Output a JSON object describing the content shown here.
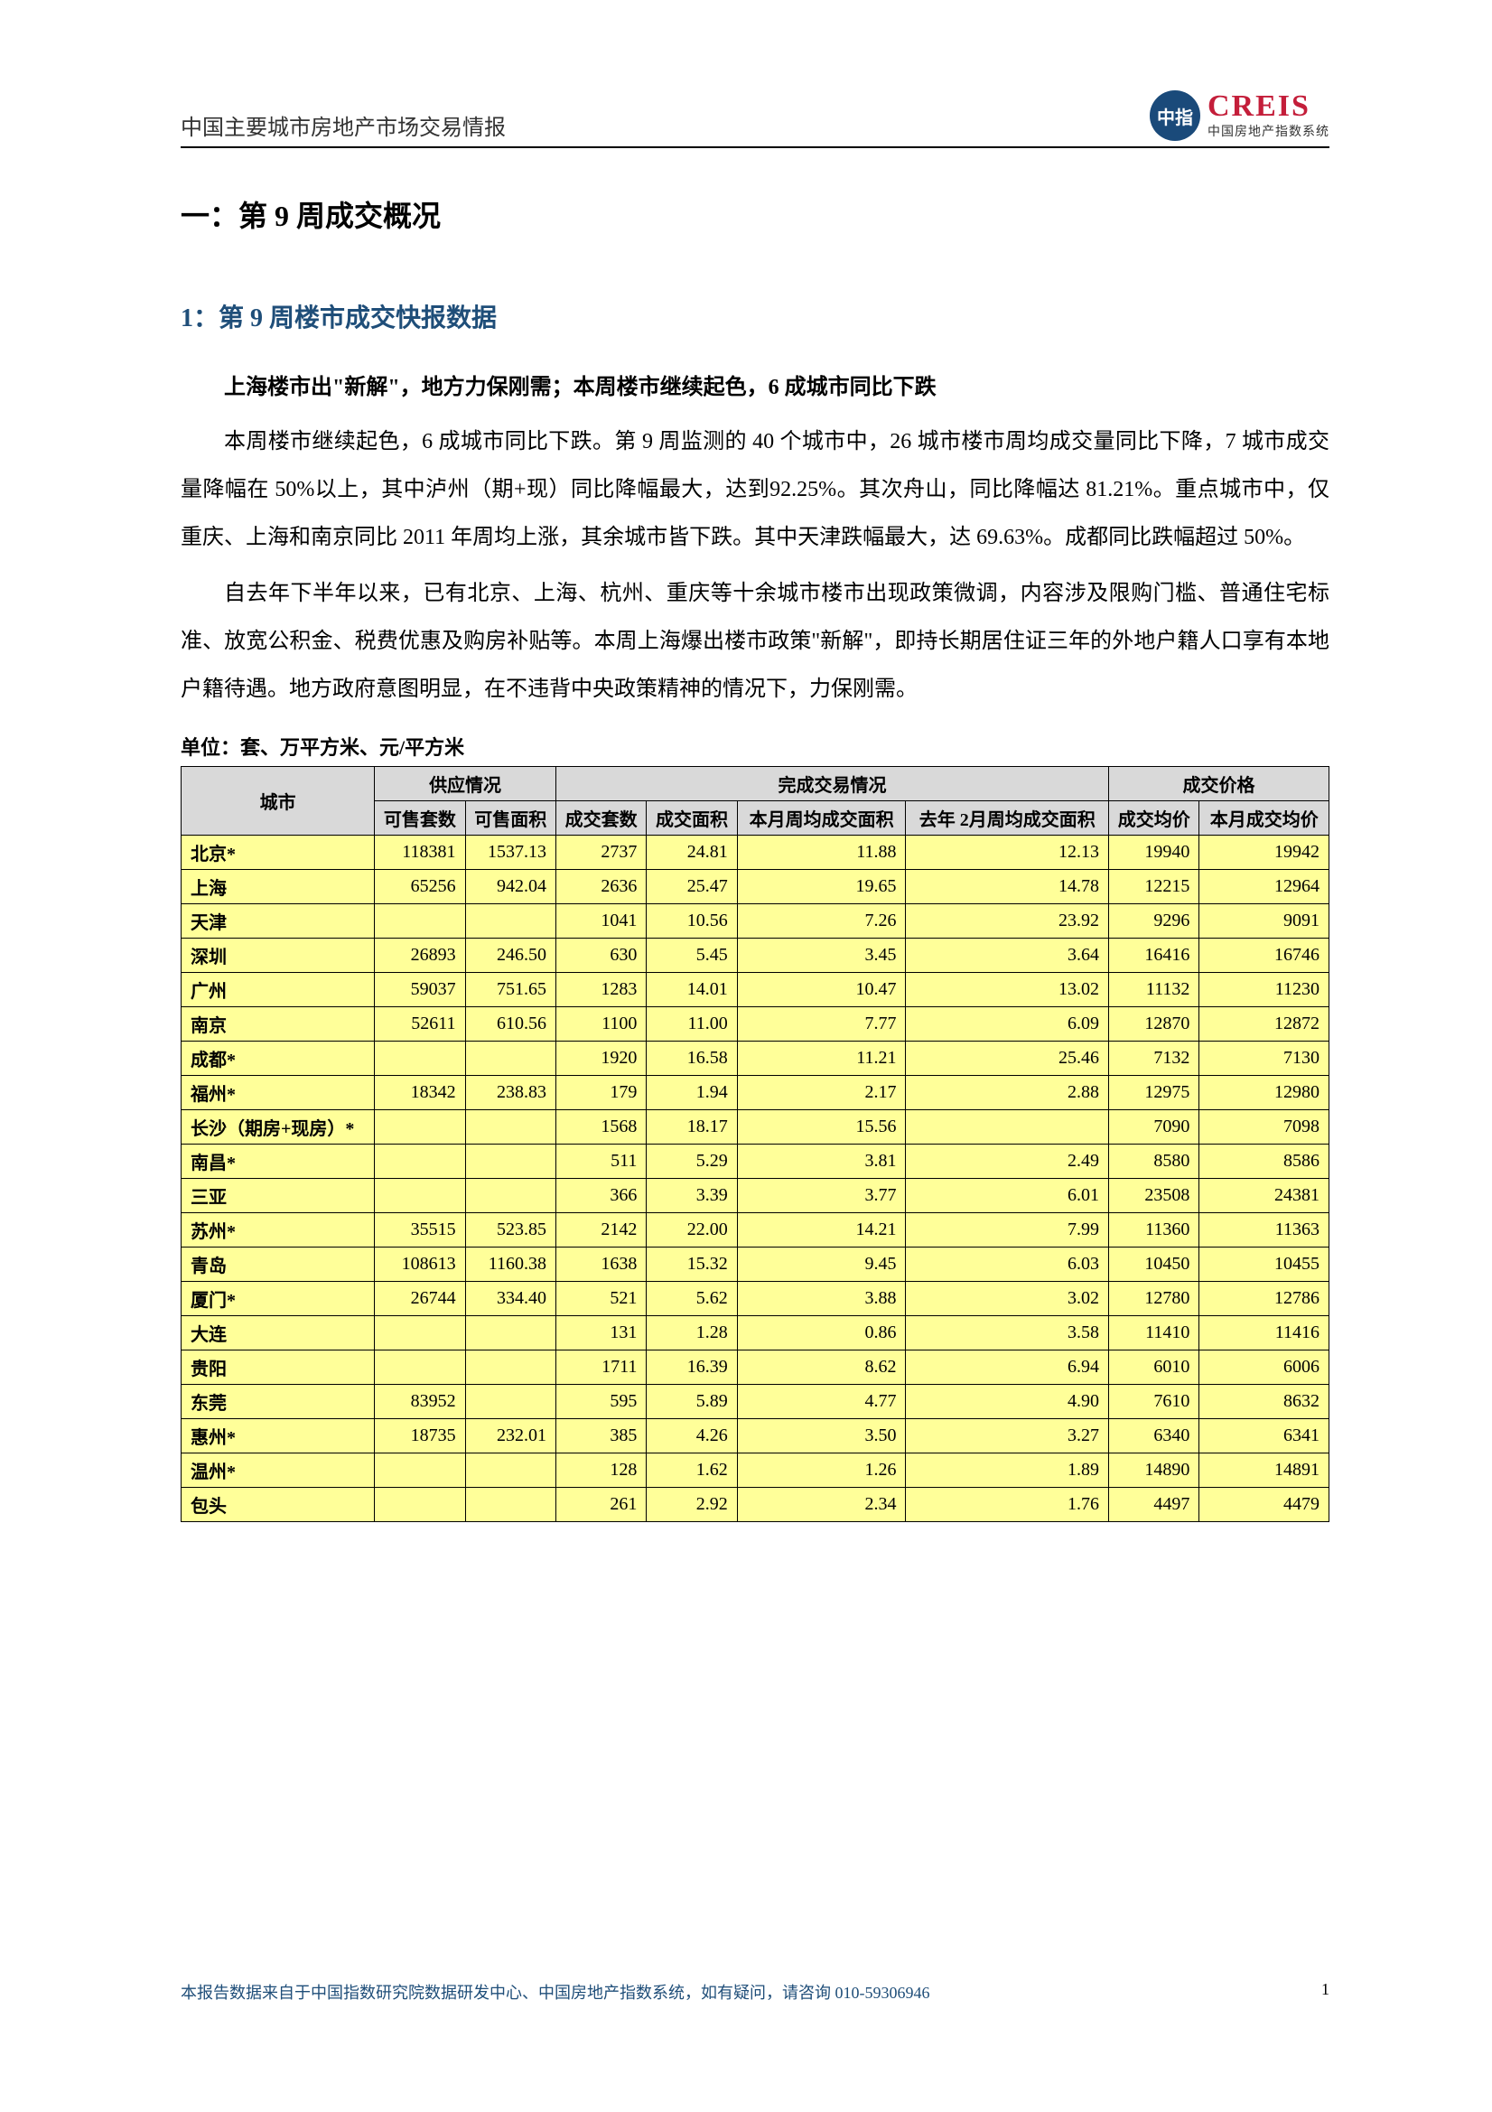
{
  "header": {
    "title": "中国主要城市房地产市场交易情报",
    "logo_badge": "中指",
    "logo_main": "CREIS",
    "logo_sub": "中国房地产指数系统"
  },
  "section1": {
    "h1": "一：第 9 周成交概况",
    "h2": "1：第 9 周楼市成交快报数据",
    "bold_line": "上海楼市出\"新解\"，地方力保刚需；本周楼市继续起色，6 成城市同比下跌",
    "para1": "本周楼市继续起色，6 成城市同比下跌。第 9 周监测的 40 个城市中，26 城市楼市周均成交量同比下降，7 城市成交量降幅在 50%以上，其中泸州（期+现）同比降幅最大，达到92.25%。其次舟山，同比降幅达 81.21%。重点城市中，仅重庆、上海和南京同比 2011 年周均上涨，其余城市皆下跌。其中天津跌幅最大，达 69.63%。成都同比跌幅超过 50%。",
    "para2": "自去年下半年以来，已有北京、上海、杭州、重庆等十余城市楼市出现政策微调，内容涉及限购门槛、普通住宅标准、放宽公积金、税费优惠及购房补贴等。本周上海爆出楼市政策\"新解\"，即持长期居住证三年的外地户籍人口享有本地户籍待遇。地方政府意图明显，在不违背中央政策精神的情况下，力保刚需。",
    "unit_line": "单位：套、万平方米、元/平方米"
  },
  "table": {
    "group_headers": [
      "城市",
      "供应情况",
      "完成交易情况",
      "成交价格"
    ],
    "sub_headers": [
      "可售套数",
      "可售面积",
      "成交套数",
      "成交面积",
      "本月周均成交面积",
      "去年 2月周均成交面积",
      "成交均价",
      "本月成交均价"
    ],
    "rows": [
      {
        "city": "北京*",
        "v": [
          "118381",
          "1537.13",
          "2737",
          "24.81",
          "11.88",
          "12.13",
          "19940",
          "19942"
        ]
      },
      {
        "city": "上海",
        "v": [
          "65256",
          "942.04",
          "2636",
          "25.47",
          "19.65",
          "14.78",
          "12215",
          "12964"
        ]
      },
      {
        "city": "天津",
        "v": [
          "",
          "",
          "1041",
          "10.56",
          "7.26",
          "23.92",
          "9296",
          "9091"
        ]
      },
      {
        "city": "深圳",
        "v": [
          "26893",
          "246.50",
          "630",
          "5.45",
          "3.45",
          "3.64",
          "16416",
          "16746"
        ]
      },
      {
        "city": "广州",
        "v": [
          "59037",
          "751.65",
          "1283",
          "14.01",
          "10.47",
          "13.02",
          "11132",
          "11230"
        ]
      },
      {
        "city": "南京",
        "v": [
          "52611",
          "610.56",
          "1100",
          "11.00",
          "7.77",
          "6.09",
          "12870",
          "12872"
        ]
      },
      {
        "city": "成都*",
        "v": [
          "",
          "",
          "1920",
          "16.58",
          "11.21",
          "25.46",
          "7132",
          "7130"
        ]
      },
      {
        "city": "福州*",
        "v": [
          "18342",
          "238.83",
          "179",
          "1.94",
          "2.17",
          "2.88",
          "12975",
          "12980"
        ]
      },
      {
        "city": "长沙（期房+现房）*",
        "v": [
          "",
          "",
          "1568",
          "18.17",
          "15.56",
          "",
          "7090",
          "7098"
        ]
      },
      {
        "city": "南昌*",
        "v": [
          "",
          "",
          "511",
          "5.29",
          "3.81",
          "2.49",
          "8580",
          "8586"
        ]
      },
      {
        "city": "三亚",
        "v": [
          "",
          "",
          "366",
          "3.39",
          "3.77",
          "6.01",
          "23508",
          "24381"
        ]
      },
      {
        "city": "苏州*",
        "v": [
          "35515",
          "523.85",
          "2142",
          "22.00",
          "14.21",
          "7.99",
          "11360",
          "11363"
        ]
      },
      {
        "city": "青岛",
        "v": [
          "108613",
          "1160.38",
          "1638",
          "15.32",
          "9.45",
          "6.03",
          "10450",
          "10455"
        ]
      },
      {
        "city": "厦门*",
        "v": [
          "26744",
          "334.40",
          "521",
          "5.62",
          "3.88",
          "3.02",
          "12780",
          "12786"
        ]
      },
      {
        "city": "大连",
        "v": [
          "",
          "",
          "131",
          "1.28",
          "0.86",
          "3.58",
          "11410",
          "11416"
        ]
      },
      {
        "city": "贵阳",
        "v": [
          "",
          "",
          "1711",
          "16.39",
          "8.62",
          "6.94",
          "6010",
          "6006"
        ]
      },
      {
        "city": "东莞",
        "v": [
          "83952",
          "",
          "595",
          "5.89",
          "4.77",
          "4.90",
          "7610",
          "8632"
        ]
      },
      {
        "city": "惠州*",
        "v": [
          "18735",
          "232.01",
          "385",
          "4.26",
          "3.50",
          "3.27",
          "6340",
          "6341"
        ]
      },
      {
        "city": "温州*",
        "v": [
          "",
          "",
          "128",
          "1.62",
          "1.26",
          "1.89",
          "14890",
          "14891"
        ]
      },
      {
        "city": "包头",
        "v": [
          "",
          "",
          "261",
          "2.92",
          "2.34",
          "1.76",
          "4497",
          "4479"
        ]
      }
    ]
  },
  "footer": {
    "text": "本报告数据来自于中国指数研究院数据研发中心、中国房地产指数系统，如有疑问，请咨询 010-59306946",
    "page": "1"
  }
}
